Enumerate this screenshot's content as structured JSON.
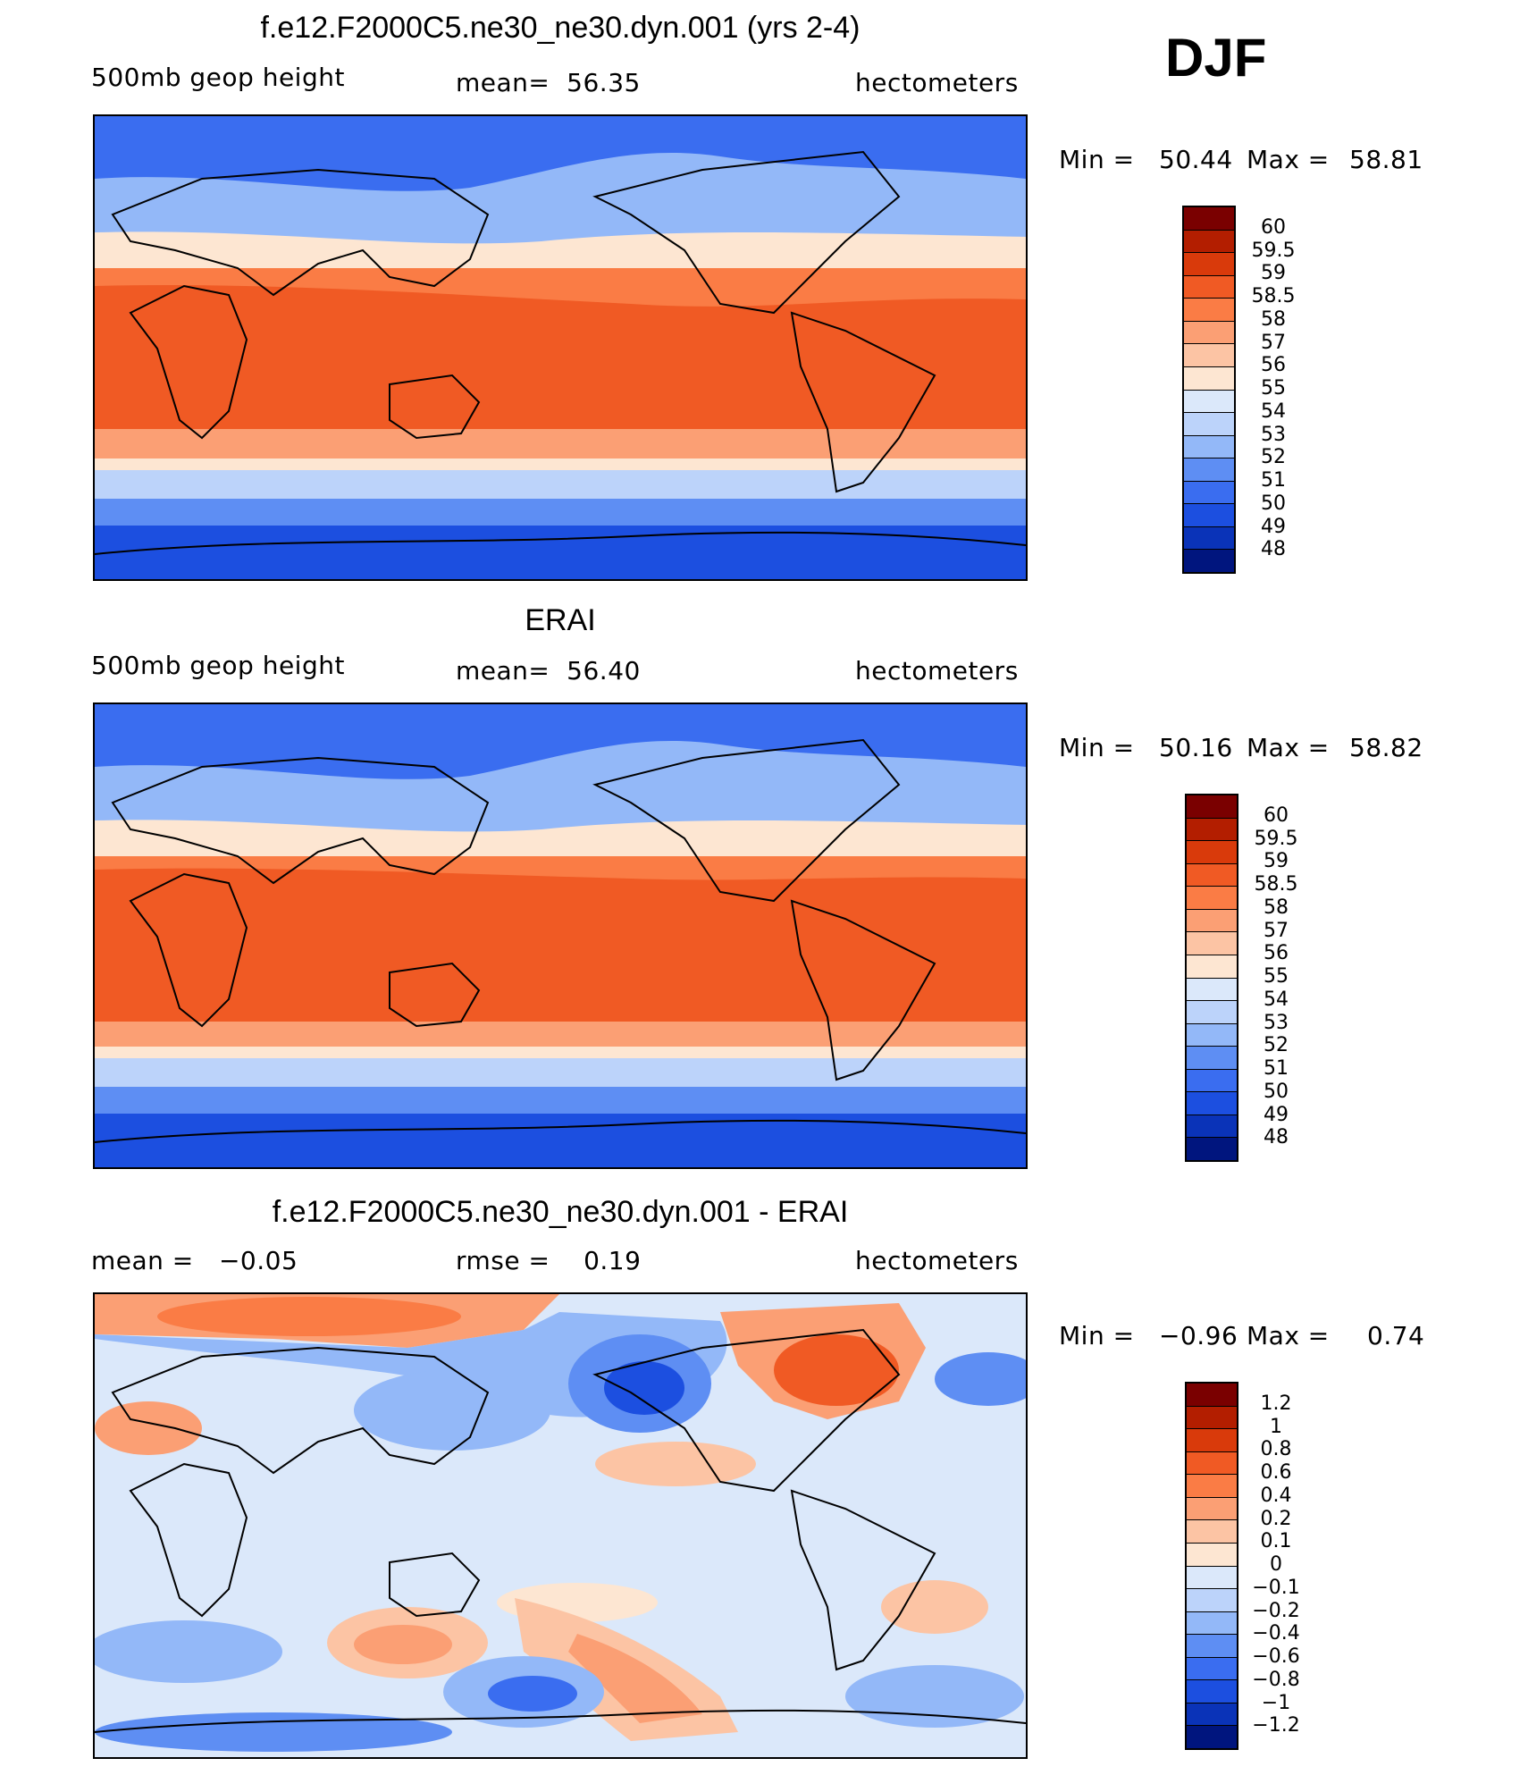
{
  "season": "DJF",
  "panels": [
    {
      "title": "f.e12.F2000C5.ne30_ne30.dyn.001 (yrs 2-4)",
      "left_label": "500mb geop height",
      "center_label": "mean=  56.35",
      "right_label": "hectometers",
      "min_label": "Min =",
      "min_value": "50.44",
      "max_label": "Max =",
      "max_value": "58.81",
      "colorbar_labels": [
        "60",
        "59.5",
        "59",
        "58.5",
        "58",
        "57",
        "56",
        "55",
        "54",
        "53",
        "52",
        "51",
        "50",
        "49",
        "48"
      ],
      "colorbar_colors": [
        "#7a0000",
        "#b31e00",
        "#d93a0b",
        "#f05a24",
        "#fa7c45",
        "#fb9f74",
        "#fcc4a4",
        "#fde6d2",
        "#dbe8fa",
        "#bcd3fa",
        "#93b8f8",
        "#5e8ef3",
        "#3a6df0",
        "#1c4fe0",
        "#0a33b8",
        "#00157e"
      ],
      "fields": [
        {
          "name": "band-north-polar",
          "color": "#3a6df0"
        },
        {
          "name": "band-north-mid",
          "color": "#93b8f8"
        },
        {
          "name": "band-north-sub",
          "color": "#fde6d2"
        },
        {
          "name": "band-tropics",
          "color": "#f05a24"
        },
        {
          "name": "band-south-sub",
          "color": "#fcc4a4"
        },
        {
          "name": "band-south-mid",
          "color": "#bcd3fa"
        },
        {
          "name": "band-south-polar",
          "color": "#1c4fe0"
        }
      ]
    },
    {
      "title": "ERAI",
      "left_label": "500mb geop height",
      "center_label": "mean=  56.40",
      "right_label": "hectometers",
      "min_label": "Min =",
      "min_value": "50.16",
      "max_label": "Max =",
      "max_value": "58.82",
      "colorbar_labels": [
        "60",
        "59.5",
        "59",
        "58.5",
        "58",
        "57",
        "56",
        "55",
        "54",
        "53",
        "52",
        "51",
        "50",
        "49",
        "48"
      ],
      "colorbar_colors": [
        "#7a0000",
        "#b31e00",
        "#d93a0b",
        "#f05a24",
        "#fa7c45",
        "#fb9f74",
        "#fcc4a4",
        "#fde6d2",
        "#dbe8fa",
        "#bcd3fa",
        "#93b8f8",
        "#5e8ef3",
        "#3a6df0",
        "#1c4fe0",
        "#0a33b8",
        "#00157e"
      ],
      "fields": [
        {
          "name": "band-north-polar",
          "color": "#3a6df0"
        },
        {
          "name": "band-north-mid",
          "color": "#93b8f8"
        },
        {
          "name": "band-north-sub",
          "color": "#fde6d2"
        },
        {
          "name": "band-tropics",
          "color": "#f05a24"
        },
        {
          "name": "band-south-sub",
          "color": "#fcc4a4"
        },
        {
          "name": "band-south-mid",
          "color": "#bcd3fa"
        },
        {
          "name": "band-south-polar",
          "color": "#1c4fe0"
        }
      ]
    },
    {
      "title": "f.e12.F2000C5.ne30_ne30.dyn.001 - ERAI",
      "left_label": "mean =   −0.05",
      "center_label": "rmse =    0.19",
      "right_label": "hectometers",
      "min_label": "Min =",
      "min_value": "−0.96",
      "max_label": "Max =",
      "max_value": "0.74",
      "colorbar_labels": [
        "1.2",
        "1",
        "0.8",
        "0.6",
        "0.4",
        "0.2",
        "0.1",
        "0",
        "−0.1",
        "−0.2",
        "−0.4",
        "−0.6",
        "−0.8",
        "−1",
        "−1.2"
      ],
      "colorbar_colors": [
        "#7a0000",
        "#b31e00",
        "#d93a0b",
        "#f05a24",
        "#fa7c45",
        "#fb9f74",
        "#fcc4a4",
        "#fde6d2",
        "#dbe8fa",
        "#bcd3fa",
        "#93b8f8",
        "#5e8ef3",
        "#3a6df0",
        "#1c4fe0",
        "#0a33b8",
        "#00157e"
      ]
    }
  ],
  "chart_data": [
    {
      "type": "heatmap",
      "title": "f.e12.F2000C5.ne30_ne30.dyn.001 (yrs 2-4)",
      "variable": "500mb geop height",
      "units": "hectometers",
      "mean": 56.35,
      "min": 50.44,
      "max": 58.81,
      "contour_levels": [
        48,
        49,
        50,
        51,
        52,
        53,
        54,
        55,
        56,
        57,
        58,
        58.5,
        59,
        59.5,
        60
      ]
    },
    {
      "type": "heatmap",
      "title": "ERAI",
      "variable": "500mb geop height",
      "units": "hectometers",
      "mean": 56.4,
      "min": 50.16,
      "max": 58.82,
      "contour_levels": [
        48,
        49,
        50,
        51,
        52,
        53,
        54,
        55,
        56,
        57,
        58,
        58.5,
        59,
        59.5,
        60
      ]
    },
    {
      "type": "heatmap",
      "title": "f.e12.F2000C5.ne30_ne30.dyn.001 - ERAI",
      "units": "hectometers",
      "mean": -0.05,
      "rmse": 0.19,
      "min": -0.96,
      "max": 0.74,
      "contour_levels": [
        -1.2,
        -1,
        -0.8,
        -0.6,
        -0.4,
        -0.2,
        -0.1,
        0,
        0.1,
        0.2,
        0.4,
        0.6,
        0.8,
        1,
        1.2
      ]
    }
  ]
}
